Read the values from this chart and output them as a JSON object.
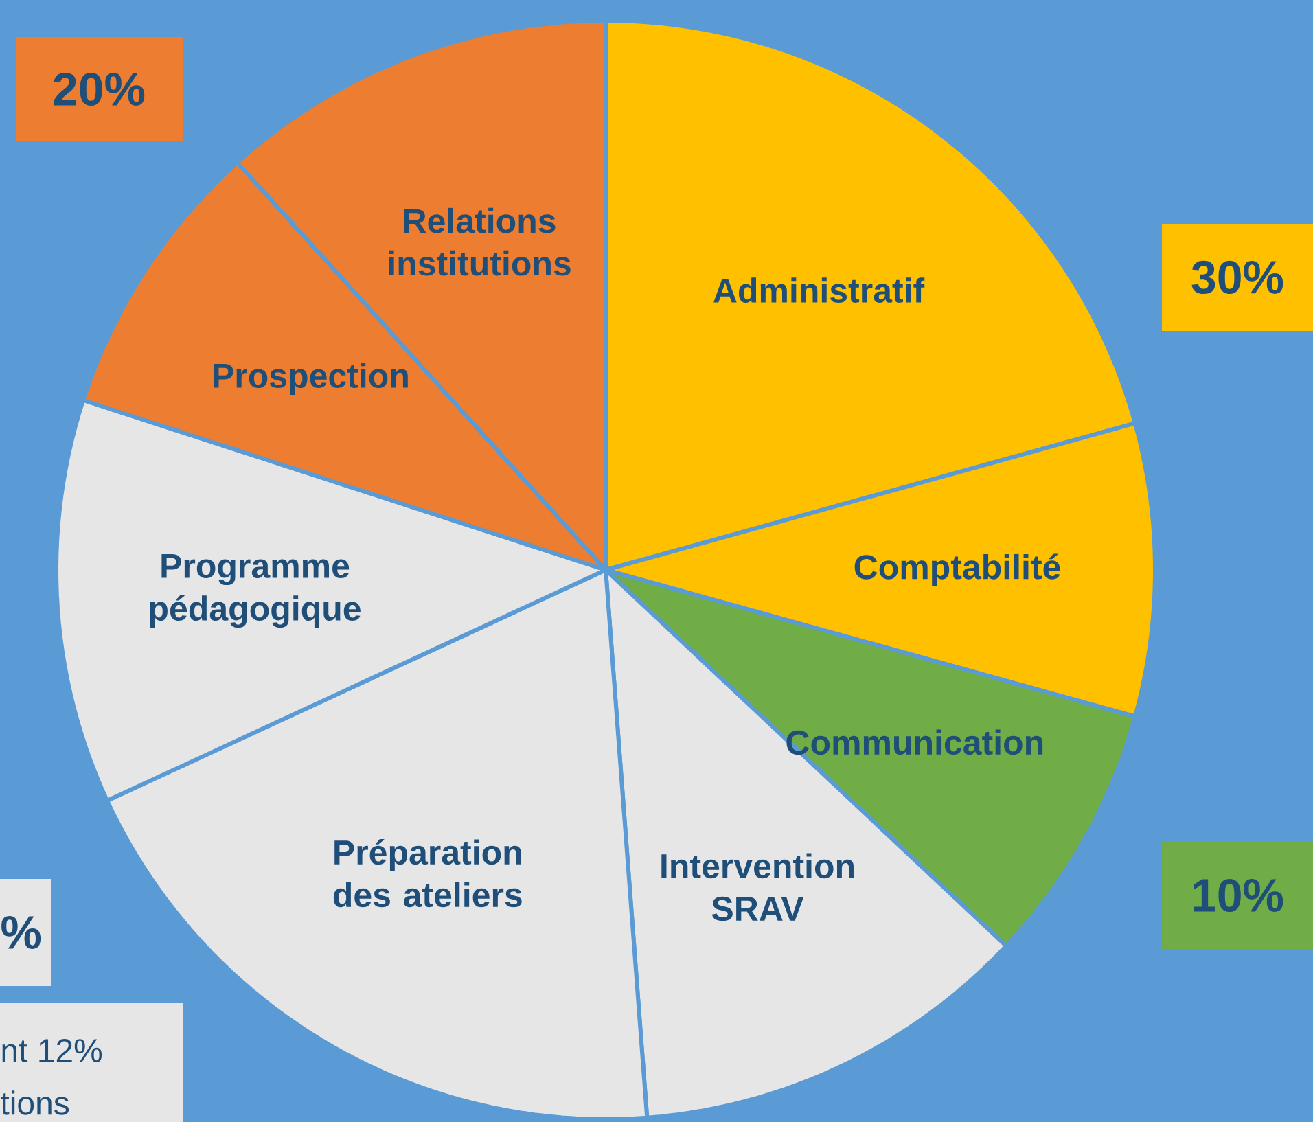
{
  "chart_data": {
    "type": "pie",
    "categories": [
      "Administratif",
      "Comptabilité",
      "Communication",
      "Intervention SRAV",
      "Préparation des ateliers",
      "Programme pédagogique",
      "Prospection",
      "Relations institutions"
    ],
    "values": [
      20.7,
      8.6,
      7.7,
      11.8,
      19.3,
      11.9,
      8.3,
      11.7
    ],
    "colors": [
      "#ffc000",
      "#ffc000",
      "#70ad47",
      "#e7e6e6",
      "#e7e6e6",
      "#e7e6e6",
      "#ed7d31",
      "#ed7d31"
    ],
    "annotations": [
      "20%",
      "30%",
      "10%",
      "%",
      "nt 12%",
      "tions"
    ]
  }
}
